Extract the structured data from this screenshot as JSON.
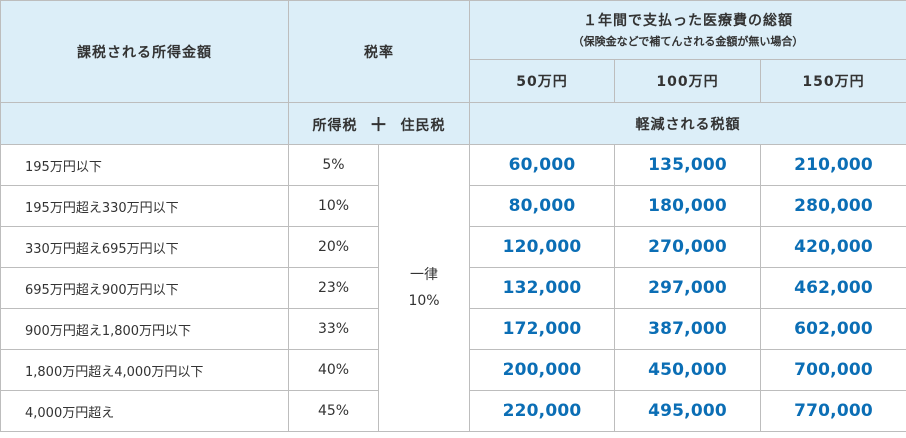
{
  "header": {
    "income_label": "課税される所得金額",
    "tax_rate_label": "税率",
    "medical_total_label": "１年間で支払った医療費の総額",
    "medical_total_note": "（保険金などで補てんされる金額が無い場合）",
    "amounts": [
      "50万円",
      "100万円",
      "150万円"
    ],
    "income_tax_label": "所得税",
    "plus_sign": "＋",
    "resident_tax_label": "住民税",
    "reduced_tax_label": "軽減される税額"
  },
  "resident_tax": {
    "line1": "一律",
    "line2": "10%"
  },
  "rows": [
    {
      "bracket": "195万円以下",
      "rate": "5%",
      "values": [
        "60,000",
        "135,000",
        "210,000"
      ]
    },
    {
      "bracket": "195万円超え330万円以下",
      "rate": "10%",
      "values": [
        "80,000",
        "180,000",
        "280,000"
      ]
    },
    {
      "bracket": "330万円超え695万円以下",
      "rate": "20%",
      "values": [
        "120,000",
        "270,000",
        "420,000"
      ]
    },
    {
      "bracket": "695万円超え900万円以下",
      "rate": "23%",
      "values": [
        "132,000",
        "297,000",
        "462,000"
      ]
    },
    {
      "bracket": "900万円超え1,800万円以下",
      "rate": "33%",
      "values": [
        "172,000",
        "387,000",
        "602,000"
      ]
    },
    {
      "bracket": "1,800万円超え4,000万円以下",
      "rate": "40%",
      "values": [
        "200,000",
        "450,000",
        "700,000"
      ]
    },
    {
      "bracket": "4,000万円超え",
      "rate": "45%",
      "values": [
        "220,000",
        "495,000",
        "770,000"
      ]
    }
  ],
  "colors": {
    "header_bg": "#dceef8",
    "amount_text": "#0b6eb5",
    "border": "#bdbdbd"
  }
}
